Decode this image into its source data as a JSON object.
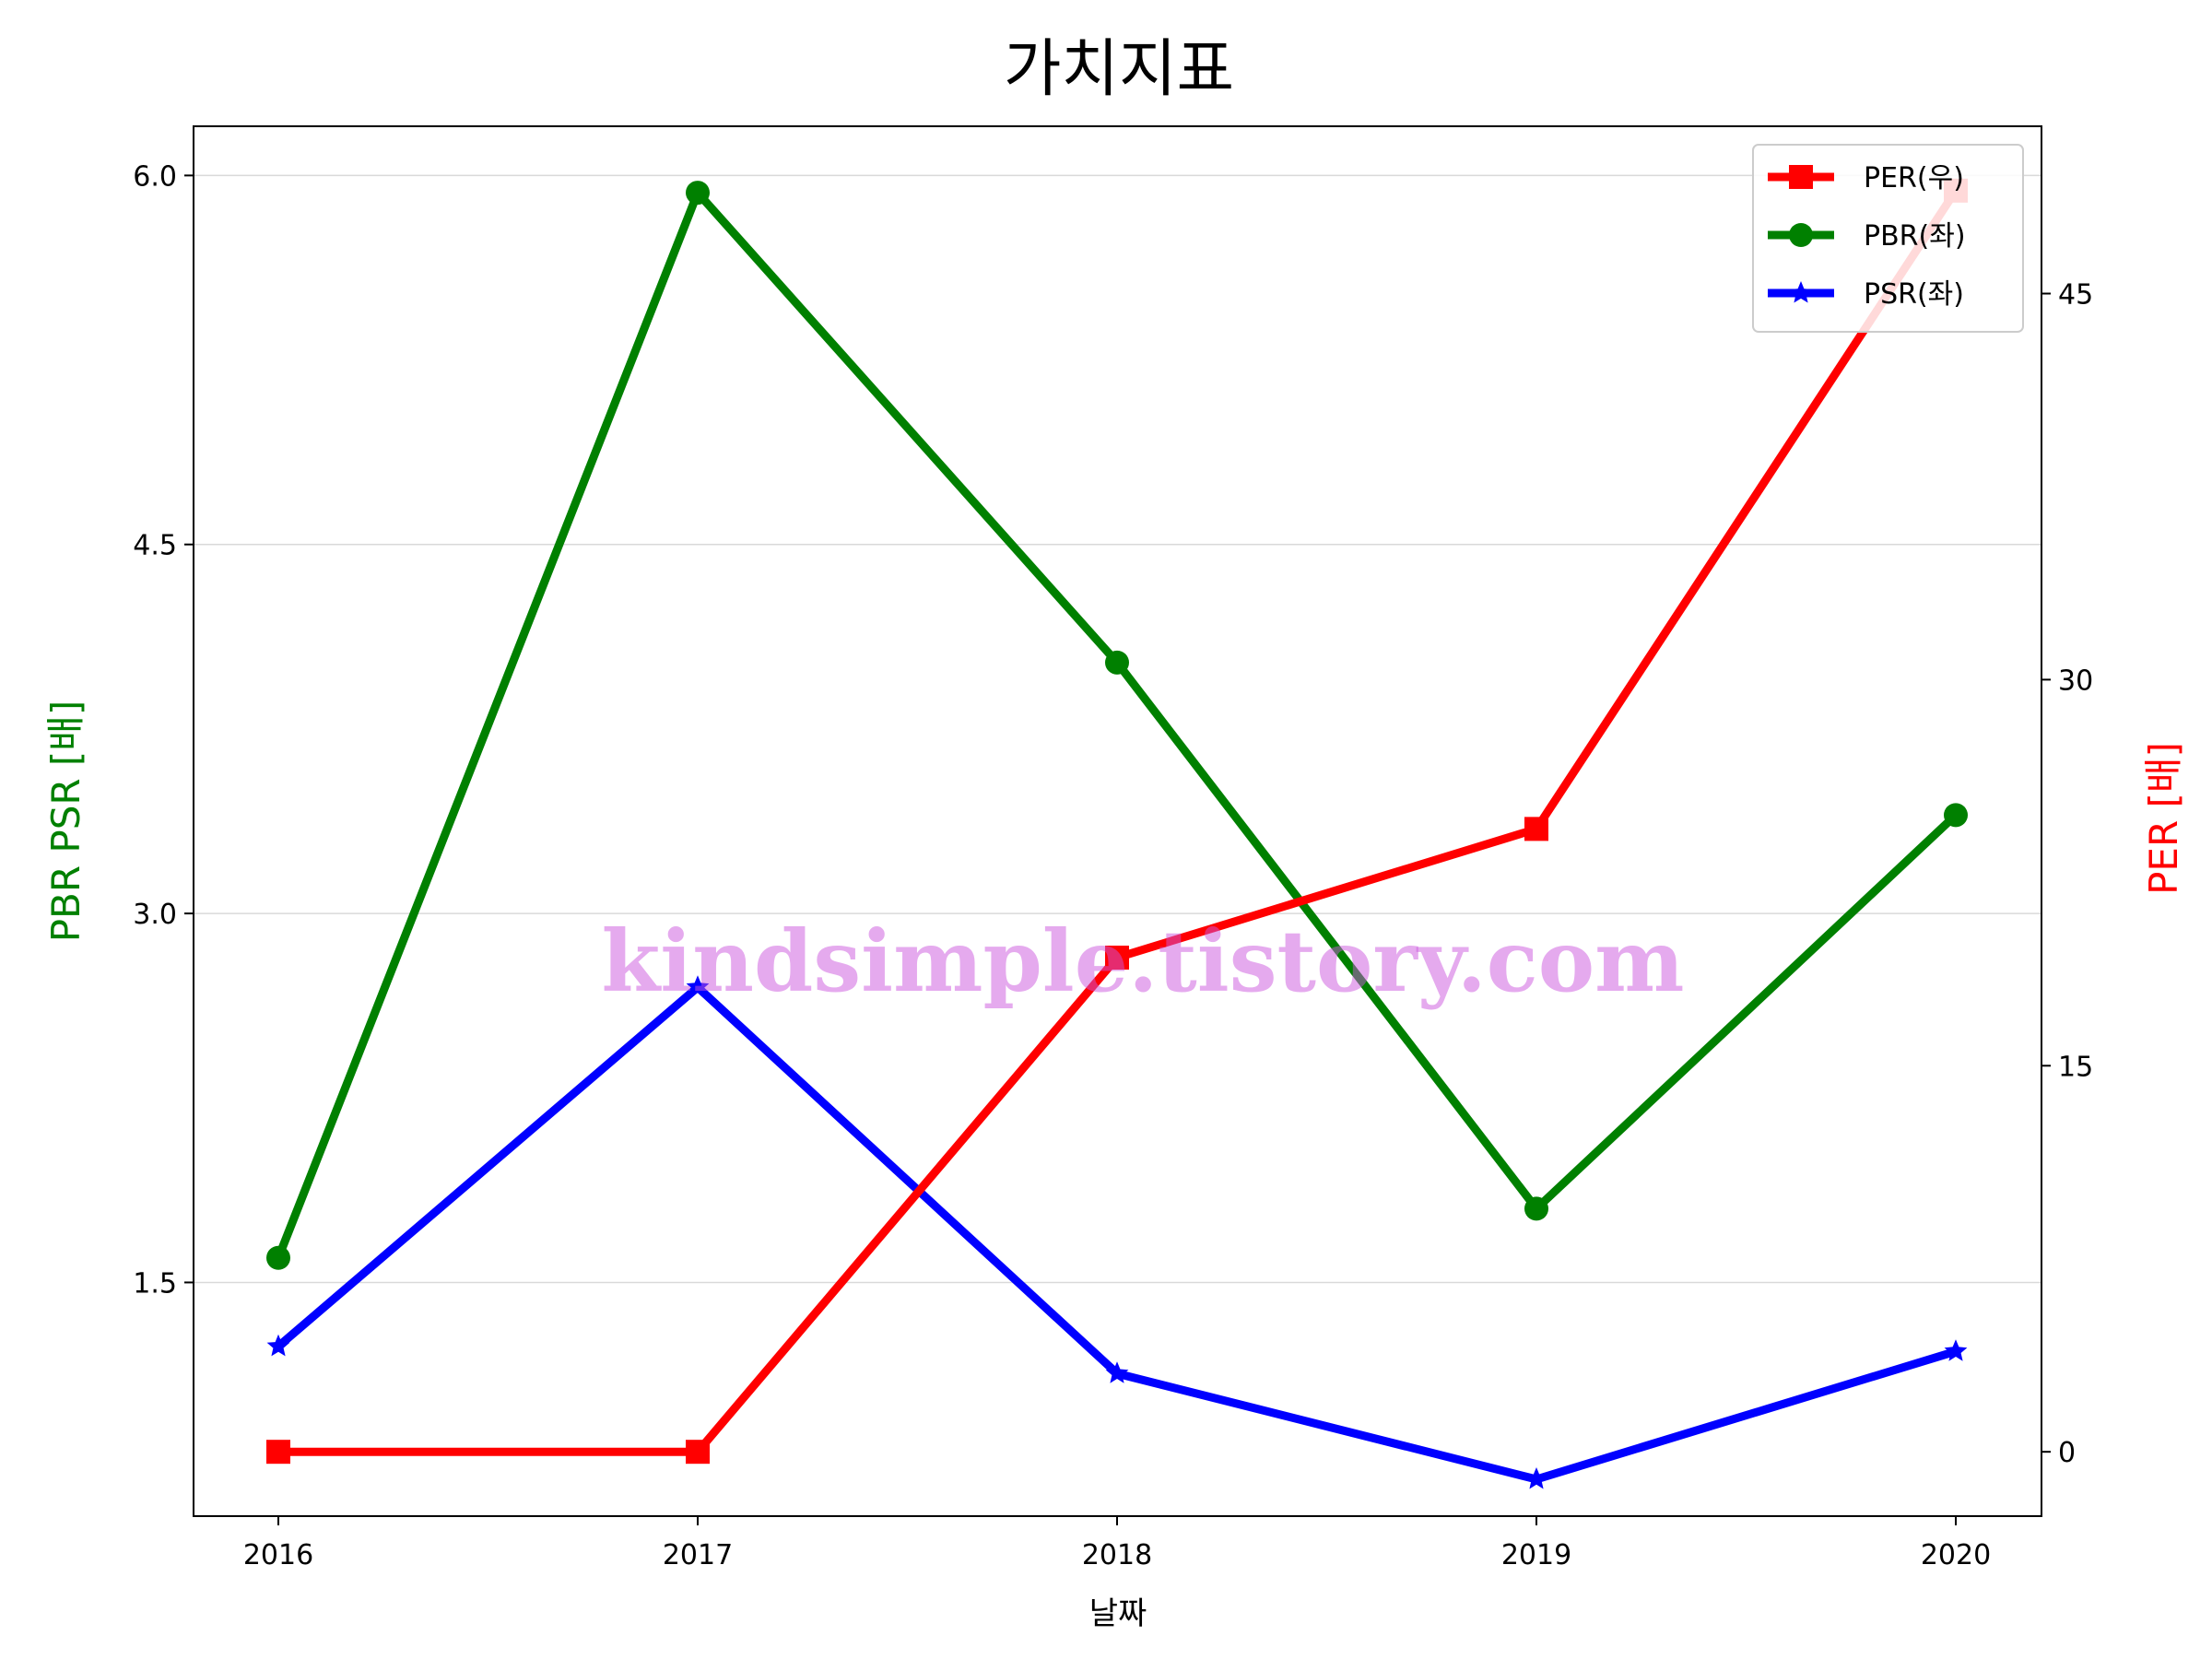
{
  "chart_data": {
    "type": "line",
    "title": "가치지표",
    "xlabel": "날짜",
    "ylabel_left": "PBR PSR [배]",
    "ylabel_right": "PER [배]",
    "categories": [
      "2016",
      "2017",
      "2018",
      "2019",
      "2020"
    ],
    "left_axis": {
      "ylim": [
        0.55,
        6.2
      ],
      "ticks": [
        1.5,
        3.0,
        4.5,
        6.0
      ],
      "tick_labels": [
        "1.5",
        "3.0",
        "4.5",
        "6.0"
      ],
      "color": "#008000"
    },
    "right_axis": {
      "ylim": [
        -2.5,
        51.5
      ],
      "ticks": [
        0,
        15,
        30,
        45
      ],
      "tick_labels": [
        "0",
        "15",
        "30",
        "45"
      ],
      "color": "#ff0000"
    },
    "grid": "horizontal",
    "legend_position": "top-right",
    "series": [
      {
        "name": "PER(우)",
        "axis": "right",
        "color": "#ff0000",
        "marker": "square",
        "values": [
          0.0,
          0.0,
          19.2,
          24.2,
          49.0
        ]
      },
      {
        "name": "PBR(좌)",
        "axis": "left",
        "color": "#008000",
        "marker": "circle",
        "values": [
          1.6,
          5.93,
          4.02,
          1.8,
          3.4
        ]
      },
      {
        "name": "PSR(좌)",
        "axis": "left",
        "color": "#0000ff",
        "marker": "star",
        "values": [
          1.24,
          2.7,
          1.13,
          0.7,
          1.22
        ]
      }
    ],
    "watermark": "kindsimple.tistory.com"
  }
}
